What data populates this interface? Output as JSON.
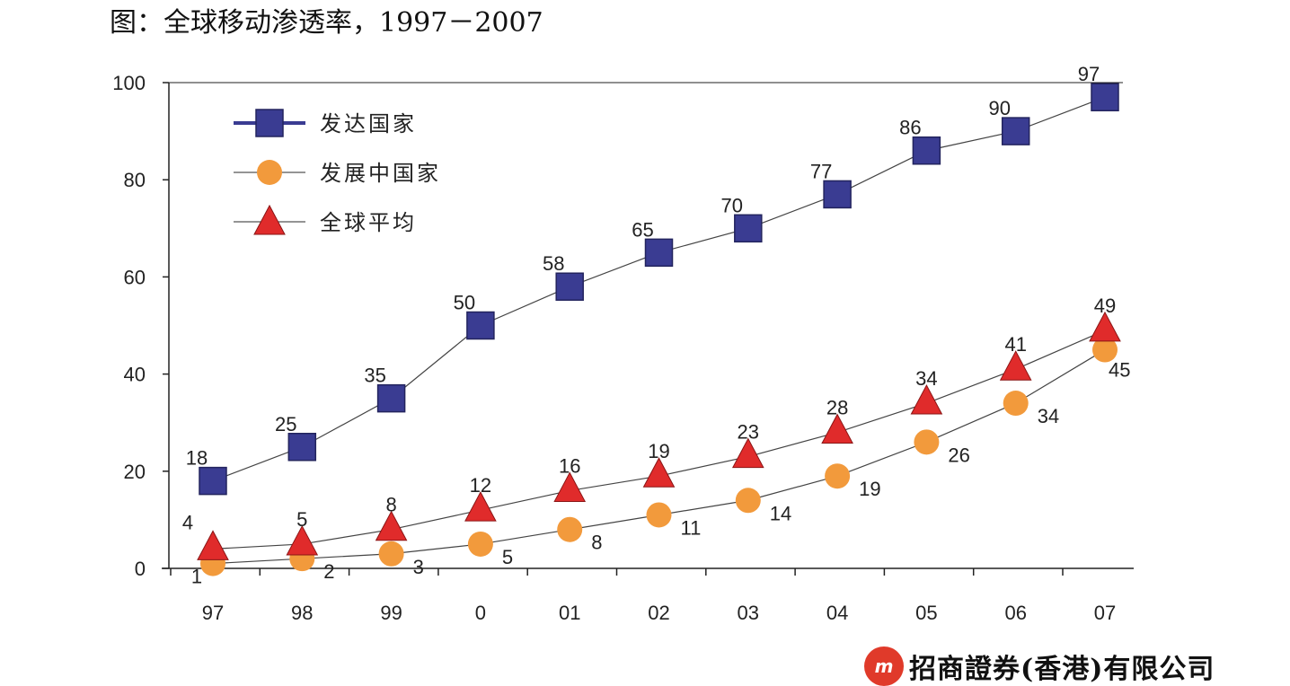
{
  "title": "图：全球移动渗透率，1997－2007",
  "logo_text": "招商證券(香港)有限公司",
  "chart_data": {
    "type": "line",
    "title": "图：全球移动渗透率，1997－2007",
    "xlabel": "",
    "ylabel": "",
    "categories": [
      "97",
      "98",
      "99",
      "0",
      "01",
      "02",
      "03",
      "04",
      "05",
      "06",
      "07"
    ],
    "ylim": [
      0,
      100
    ],
    "yticks": [
      0,
      20,
      40,
      60,
      80,
      100
    ],
    "grid": false,
    "legend_position": "top-left",
    "series": [
      {
        "name": "发达国家",
        "marker": "square",
        "color": "#3a3c92",
        "values": [
          18,
          25,
          35,
          50,
          58,
          65,
          70,
          77,
          86,
          90,
          97
        ]
      },
      {
        "name": "发展中国家",
        "marker": "circle",
        "color": "#f29a3c",
        "values": [
          1,
          2,
          3,
          5,
          8,
          11,
          14,
          19,
          26,
          34,
          45
        ]
      },
      {
        "name": "全球平均",
        "marker": "triangle",
        "color": "#e02b2b",
        "values": [
          4,
          5,
          8,
          12,
          16,
          19,
          23,
          28,
          34,
          41,
          49
        ]
      }
    ]
  }
}
